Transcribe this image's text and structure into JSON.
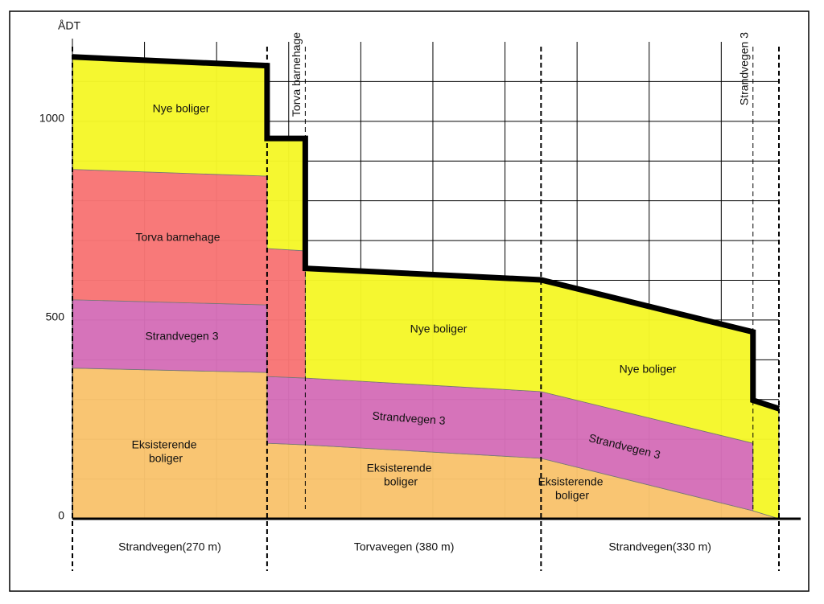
{
  "chart_data": {
    "type": "stacked_area",
    "ylabel": "ÅDT",
    "x": [
      0,
      270,
      270,
      323,
      323,
      650,
      944,
      944,
      980
    ],
    "xlim": [
      0,
      980
    ],
    "ylim": [
      0,
      1200
    ],
    "yticks": [
      0,
      500,
      1000
    ],
    "minor_yticks": [
      100,
      200,
      300,
      400,
      600,
      700,
      800,
      900,
      1100
    ],
    "minor_xticks": [
      100,
      200,
      300,
      400,
      500,
      600,
      700,
      800,
      900
    ],
    "grid": true,
    "series": [
      {
        "name": "Eksisterende boliger",
        "color": "#f9c46e",
        "values": [
          379,
          368,
          190,
          186,
          186,
          152,
          20,
          20,
          0
        ]
      },
      {
        "name": "Strandvegen 3",
        "color": "#d56fb8",
        "values": [
          172,
          170,
          168,
          168,
          168,
          168,
          170,
          0,
          0
        ]
      },
      {
        "name": "Torva barnehage",
        "color": "#f87575",
        "values": [
          328,
          324,
          322,
          320,
          0,
          0,
          0,
          0,
          0
        ]
      },
      {
        "name": "Nye boliger",
        "color": "#f5f72a",
        "values": [
          283,
          278,
          277,
          283,
          276,
          281,
          280,
          278,
          277
        ]
      }
    ],
    "segments": [
      {
        "name": "Strandvegen(270 m)",
        "start": 0,
        "end": 270
      },
      {
        "name": "Torvavegen (380 m)",
        "start": 270,
        "end": 650
      },
      {
        "name": "Strandvegen(330 m)",
        "start": 650,
        "end": 980
      }
    ],
    "markers": [
      {
        "label": "Torva barnehage",
        "x": 323
      },
      {
        "label": "Strandvegen 3",
        "x": 944
      }
    ],
    "annotations": [
      "Nye boliger",
      "Torva barnehage",
      "Strandvegen 3",
      "Eksisterende boliger",
      "Nye boliger",
      "Strandvegen 3",
      "Eksisterende boliger",
      "Nye boliger",
      "Strandvegen 3",
      "Eksisterende boliger"
    ]
  }
}
